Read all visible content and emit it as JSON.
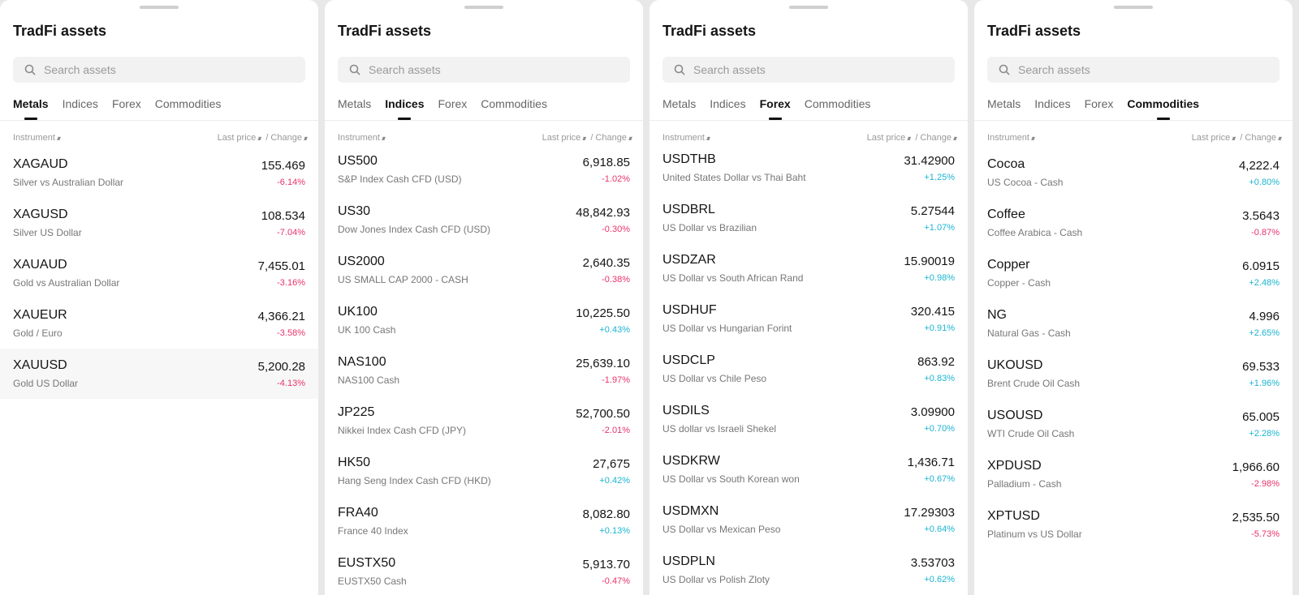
{
  "header": {
    "title": "TradFi assets",
    "search_placeholder": "Search assets"
  },
  "tabs": [
    "Metals",
    "Indices",
    "Forex",
    "Commodities"
  ],
  "columns": {
    "instrument": "Instrument",
    "last_price": "Last price",
    "change": "/ Change"
  },
  "colors": {
    "negative": "#e8336b",
    "positive": "#1bb5d1",
    "highlight": "#f7f7f7"
  },
  "icons": {
    "search": "search-icon",
    "sort": "sort-icon"
  },
  "panels": [
    {
      "active_tab": "Metals",
      "rows": [
        {
          "symbol": "XAGAUD",
          "name": "Silver vs Australian Dollar",
          "price": "155.469",
          "change": "-6.14%"
        },
        {
          "symbol": "XAGUSD",
          "name": "Silver US Dollar",
          "price": "108.534",
          "change": "-7.04%"
        },
        {
          "symbol": "XAUAUD",
          "name": "Gold vs Australian Dollar",
          "price": "7,455.01",
          "change": "-3.16%"
        },
        {
          "symbol": "XAUEUR",
          "name": "Gold / Euro",
          "price": "4,366.21",
          "change": "-3.58%"
        },
        {
          "symbol": "XAUUSD",
          "name": "Gold US Dollar",
          "price": "5,200.28",
          "change": "-4.13%",
          "highlighted": true
        }
      ]
    },
    {
      "active_tab": "Indices",
      "rows": [
        {
          "symbol": "US500",
          "name": "S&P Index Cash CFD (USD)",
          "price": "6,918.85",
          "change": "-1.02%"
        },
        {
          "symbol": "US30",
          "name": "Dow Jones Index Cash CFD (USD)",
          "price": "48,842.93",
          "change": "-0.30%"
        },
        {
          "symbol": "US2000",
          "name": "US SMALL CAP 2000 - CASH",
          "price": "2,640.35",
          "change": "-0.38%"
        },
        {
          "symbol": "UK100",
          "name": "UK 100 Cash",
          "price": "10,225.50",
          "change": "+0.43%"
        },
        {
          "symbol": "NAS100",
          "name": "NAS100 Cash",
          "price": "25,639.10",
          "change": "-1.97%"
        },
        {
          "symbol": "JP225",
          "name": "Nikkei Index Cash CFD (JPY)",
          "price": "52,700.50",
          "change": "-2.01%"
        },
        {
          "symbol": "HK50",
          "name": "Hang Seng Index Cash CFD (HKD)",
          "price": "27,675",
          "change": "+0.42%"
        },
        {
          "symbol": "FRA40",
          "name": "France 40 Index",
          "price": "8,082.80",
          "change": "+0.13%"
        },
        {
          "symbol": "EUSTX50",
          "name": "EUSTX50 Cash",
          "price": "5,913.70",
          "change": "-0.47%"
        }
      ]
    },
    {
      "active_tab": "Forex",
      "rows": [
        {
          "symbol": "USDTHB",
          "name": "United States Dollar vs Thai Baht",
          "price": "31.42900",
          "change": "+1.25%"
        },
        {
          "symbol": "USDBRL",
          "name": "US Dollar vs Brazilian",
          "price": "5.27544",
          "change": "+1.07%"
        },
        {
          "symbol": "USDZAR",
          "name": "US Dollar vs South African Rand",
          "price": "15.90019",
          "change": "+0.98%"
        },
        {
          "symbol": "USDHUF",
          "name": "US Dollar vs Hungarian Forint",
          "price": "320.415",
          "change": "+0.91%"
        },
        {
          "symbol": "USDCLP",
          "name": "US Dollar vs Chile Peso",
          "price": "863.92",
          "change": "+0.83%"
        },
        {
          "symbol": "USDILS",
          "name": "US dollar vs Israeli Shekel",
          "price": "3.09900",
          "change": "+0.70%"
        },
        {
          "symbol": "USDKRW",
          "name": "US Dollar vs South Korean won",
          "price": "1,436.71",
          "change": "+0.67%"
        },
        {
          "symbol": "USDMXN",
          "name": "US Dollar vs Mexican Peso",
          "price": "17.29303",
          "change": "+0.64%"
        },
        {
          "symbol": "USDPLN",
          "name": "US Dollar vs Polish Zloty",
          "price": "3.53703",
          "change": "+0.62%"
        }
      ]
    },
    {
      "active_tab": "Commodities",
      "rows": [
        {
          "symbol": "Cocoa",
          "name": "US Cocoa - Cash",
          "price": "4,222.4",
          "change": "+0.80%"
        },
        {
          "symbol": "Coffee",
          "name": "Coffee Arabica - Cash",
          "price": "3.5643",
          "change": "-0.87%"
        },
        {
          "symbol": "Copper",
          "name": "Copper - Cash",
          "price": "6.0915",
          "change": "+2.48%"
        },
        {
          "symbol": "NG",
          "name": "Natural Gas - Cash",
          "price": "4.996",
          "change": "+2.65%"
        },
        {
          "symbol": "UKOUSD",
          "name": "Brent Crude Oil Cash",
          "price": "69.533",
          "change": "+1.96%"
        },
        {
          "symbol": "USOUSD",
          "name": "WTI Crude Oil Cash",
          "price": "65.005",
          "change": "+2.28%"
        },
        {
          "symbol": "XPDUSD",
          "name": "Palladium - Cash",
          "price": "1,966.60",
          "change": "-2.98%"
        },
        {
          "symbol": "XPTUSD",
          "name": "Platinum vs US Dollar",
          "price": "2,535.50",
          "change": "-5.73%"
        }
      ]
    }
  ]
}
